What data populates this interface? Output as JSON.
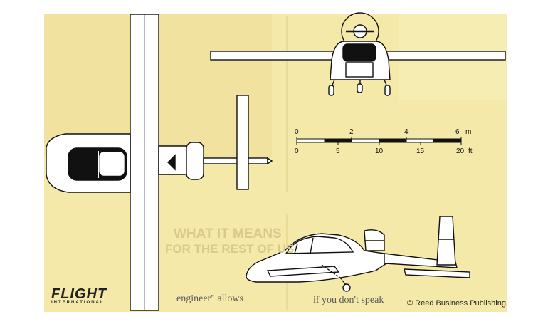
{
  "scale": {
    "metric_labels": [
      "0",
      "2",
      "4",
      "6"
    ],
    "metric_unit": "m",
    "imperial_labels": [
      "0",
      "5",
      "10",
      "15",
      "20"
    ],
    "imperial_unit": "ft"
  },
  "background_text": {
    "headline_line1": "WHAT IT MEANS",
    "headline_line2": "FOR THE REST OF US",
    "fragment_engineer": "engineer\" allows",
    "fragment_if_you": "if you don't speak"
  },
  "logo": {
    "main": "FLIGHT",
    "sub": "INTERNATIONAL"
  },
  "copyright": "© Reed Business Publishing",
  "colors": {
    "paper": "#f4e9a8",
    "ink": "#111111",
    "strip": "#ffffff"
  }
}
